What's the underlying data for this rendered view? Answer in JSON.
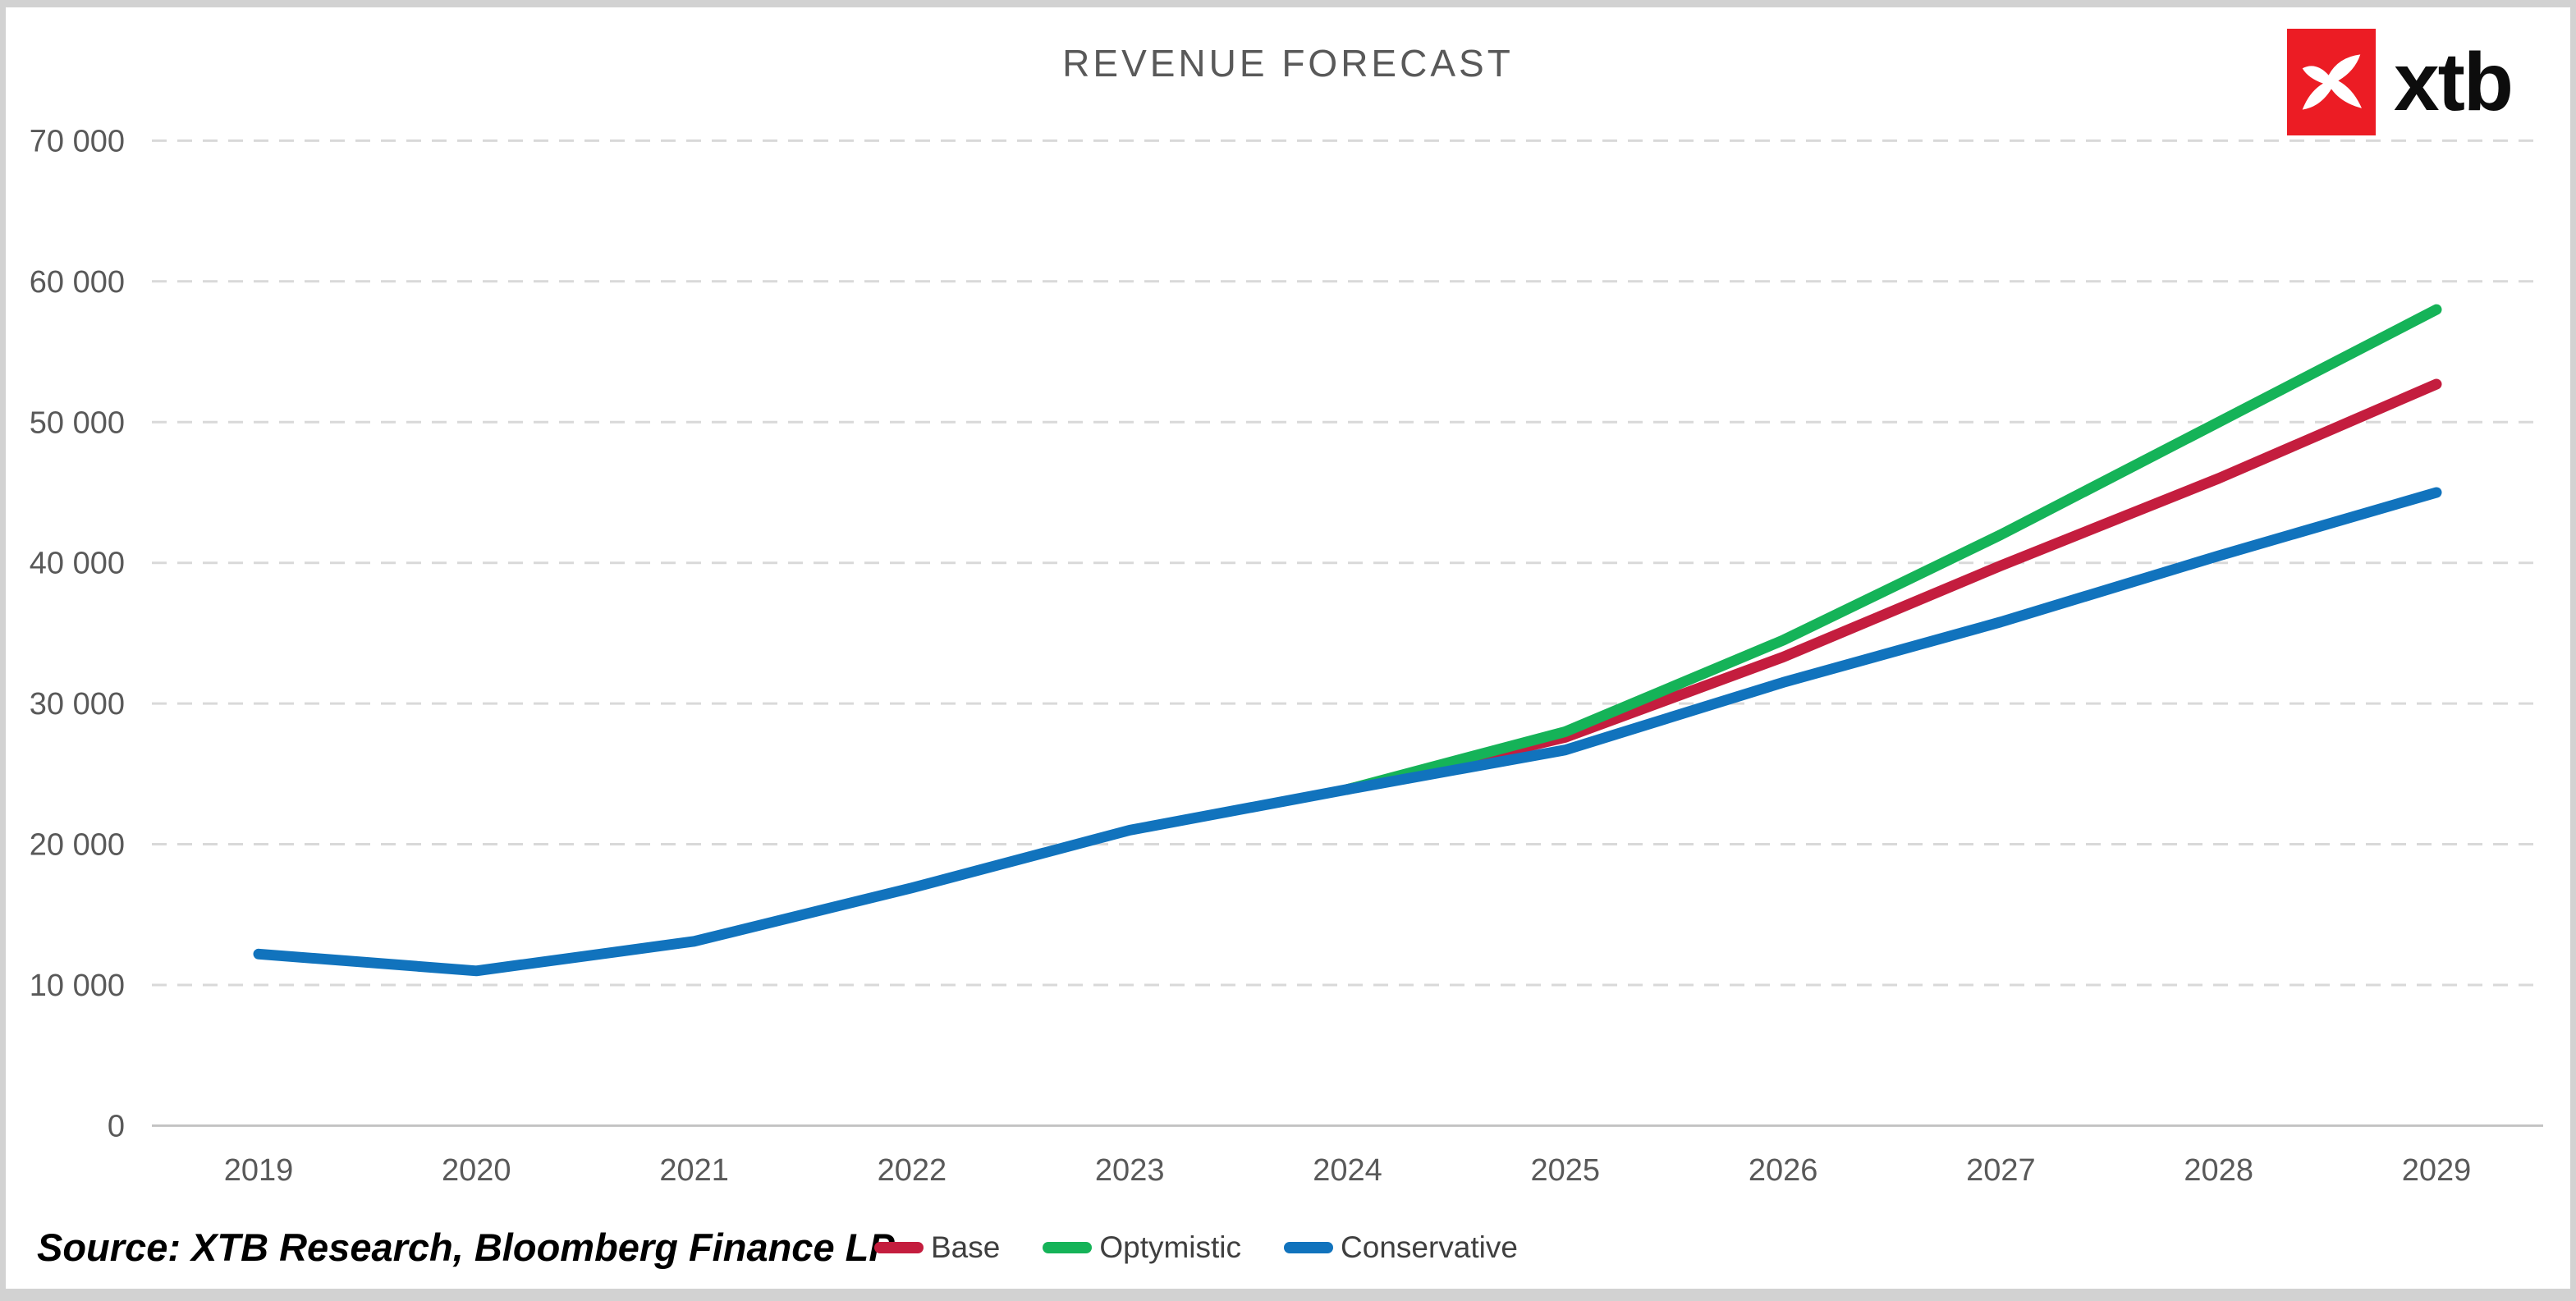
{
  "header": {
    "logo_text": "xtb",
    "logo_red": "#EC1C24"
  },
  "chart_data": {
    "type": "line",
    "title": "REVENUE FORECAST",
    "categories": [
      "2019",
      "2020",
      "2021",
      "2022",
      "2023",
      "2024",
      "2025",
      "2026",
      "2027",
      "2028",
      "2029"
    ],
    "y_ticks": [
      "0",
      "10 000",
      "20 000",
      "30 000",
      "40 000",
      "50 000",
      "60 000",
      "70 000"
    ],
    "ylim": [
      0,
      70000
    ],
    "grid": "horizontal-dashed",
    "legend_position": "bottom",
    "colors": {
      "gridline": "#d9d9d9",
      "axis": "#c3c3c3",
      "tick_text": "#595959"
    },
    "series": [
      {
        "name": "Base",
        "color": "#C41D3E",
        "values": [
          null,
          null,
          null,
          null,
          null,
          23900,
          27600,
          33300,
          39800,
          46000,
          52700
        ]
      },
      {
        "name": "Optymistic",
        "color": "#15B358",
        "values": [
          null,
          null,
          null,
          null,
          null,
          23900,
          28000,
          34500,
          42000,
          50000,
          58000
        ]
      },
      {
        "name": "Conservative",
        "color": "#1173BD",
        "values": [
          12200,
          11000,
          13100,
          16900,
          21000,
          23900,
          26700,
          31500,
          35800,
          40500,
          45000
        ]
      }
    ]
  },
  "footer": {
    "source": "Source: XTB Research, Bloomberg Finance LP"
  }
}
